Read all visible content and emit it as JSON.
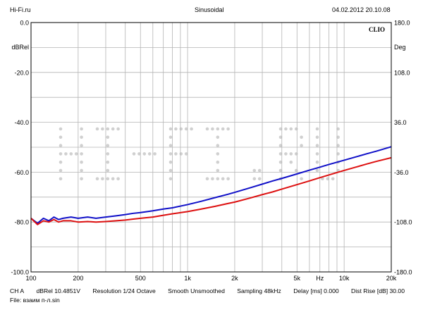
{
  "header": {
    "left": "Hi-Fi.ru",
    "center": "Sinusoidal",
    "right": "04.02.2012 20.10.08"
  },
  "brand": "CLIO",
  "watermark": "HI-FI.RU",
  "footer": {
    "line1": [
      "CH A",
      "dBRel 10.4851V",
      "Resolution 1/24 Octave",
      "Smooth Unsmoothed",
      "Sampling 48kHz",
      "Delay [ms] 0.000",
      "Dist Rise [dB] 30.00"
    ],
    "line2": "File: взаим п-л.sin"
  },
  "colors": {
    "blue": "#1010c8",
    "red": "#dd1010",
    "grid": "#b4b4b4"
  },
  "chart_data": {
    "type": "line",
    "xscale": "log",
    "xlim": [
      100,
      20000
    ],
    "ylim": [
      -100,
      0
    ],
    "y2lim": [
      -180,
      180
    ],
    "x_ticks": [
      100,
      200,
      500,
      1000,
      2000,
      5000,
      10000,
      20000
    ],
    "x_tick_labels": [
      "100",
      "200",
      "500",
      "1k",
      "2k",
      "5k",
      "10k",
      "20k"
    ],
    "x_unit_label": "Hz",
    "y_ticks": [
      0,
      -20,
      -40,
      -60,
      -80,
      -100
    ],
    "y_tick_labels": [
      "0.0",
      "-20.0",
      "-40.0",
      "-60.0",
      "-80.0",
      "-100.0"
    ],
    "y_unit_label": "dBRel",
    "y2_ticks": [
      180,
      108,
      36,
      -36,
      -108,
      -180
    ],
    "y2_tick_labels": [
      "180.0",
      "108.0",
      "36.0",
      "-36.0",
      "-108.0",
      "-180.0"
    ],
    "y2_unit_label": "Deg",
    "grid": true,
    "series": [
      {
        "color": "#1010c8",
        "x": [
          100,
          110,
          120,
          130,
          140,
          150,
          160,
          180,
          200,
          230,
          260,
          300,
          350,
          400,
          450,
          500,
          600,
          700,
          800,
          1000,
          1200,
          1500,
          1800,
          2000,
          2500,
          3000,
          3500,
          4000,
          5000,
          6000,
          7000,
          8000,
          10000,
          12000,
          14000,
          16000,
          20000
        ],
        "y": [
          -78.5,
          -80.5,
          -78.5,
          -79.5,
          -78.0,
          -79.0,
          -78.5,
          -78.0,
          -78.5,
          -78.0,
          -78.5,
          -78.0,
          -77.5,
          -77.0,
          -76.5,
          -76.2,
          -75.5,
          -74.8,
          -74.3,
          -73.0,
          -71.8,
          -70.2,
          -68.9,
          -68.1,
          -66.3,
          -64.8,
          -63.5,
          -62.5,
          -60.7,
          -59.2,
          -58.0,
          -56.9,
          -55.2,
          -53.8,
          -52.6,
          -51.6,
          -49.8
        ]
      },
      {
        "color": "#dd1010",
        "x": [
          100,
          110,
          120,
          130,
          140,
          150,
          160,
          180,
          200,
          230,
          260,
          300,
          350,
          400,
          450,
          500,
          600,
          700,
          800,
          1000,
          1200,
          1500,
          1800,
          2000,
          2500,
          3000,
          3500,
          4000,
          5000,
          6000,
          7000,
          8000,
          10000,
          12000,
          14000,
          16000,
          20000
        ],
        "y": [
          -78.5,
          -81.0,
          -79.5,
          -80.0,
          -79.0,
          -80.0,
          -79.5,
          -79.5,
          -80.0,
          -79.8,
          -80.0,
          -79.8,
          -79.5,
          -79.2,
          -78.8,
          -78.5,
          -78.0,
          -77.3,
          -76.7,
          -75.8,
          -74.9,
          -73.7,
          -72.6,
          -72.0,
          -70.4,
          -69.0,
          -67.9,
          -66.8,
          -65.0,
          -63.5,
          -62.2,
          -61.1,
          -59.3,
          -57.9,
          -56.7,
          -55.7,
          -54.2
        ]
      }
    ]
  }
}
